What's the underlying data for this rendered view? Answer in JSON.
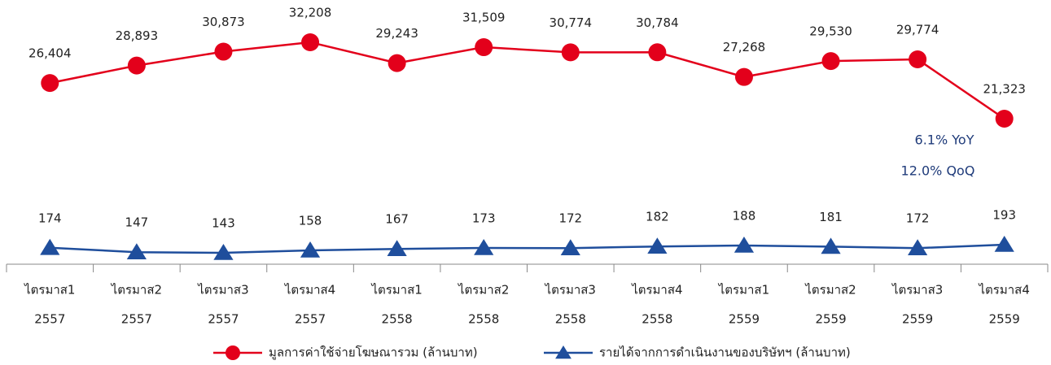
{
  "chart_data": {
    "type": "line",
    "categories": [
      [
        "ไตรมาส1",
        "2557"
      ],
      [
        "ไตรมาส2",
        "2557"
      ],
      [
        "ไตรมาส3",
        "2557"
      ],
      [
        "ไตรมาส4",
        "2557"
      ],
      [
        "ไตรมาส1",
        "2558"
      ],
      [
        "ไตรมาส2",
        "2558"
      ],
      [
        "ไตรมาส3",
        "2558"
      ],
      [
        "ไตรมาส4",
        "2558"
      ],
      [
        "ไตรมาส1",
        "2559"
      ],
      [
        "ไตรมาส2",
        "2559"
      ],
      [
        "ไตรมาส3",
        "2559"
      ],
      [
        "ไตรมาส4",
        "2559"
      ]
    ],
    "series": [
      {
        "name": "มูลการค่าใช้จ่ายโฆษณารวม (ล้านบาท)",
        "color": "#e3001b",
        "marker": "circle",
        "values": [
          26404,
          28893,
          30873,
          32208,
          29243,
          31509,
          30774,
          30784,
          27268,
          29530,
          29774,
          21323
        ],
        "value_labels": [
          "26,404",
          "28,893",
          "30,873",
          "32,208",
          "29,243",
          "31,509",
          "30,774",
          "30,784",
          "27,268",
          "29,530",
          "29,774",
          "21,323"
        ]
      },
      {
        "name": "รายได้จากการดำเนินงานของบริษัทฯ (ล้านบาท)",
        "color": "#1f4e9c",
        "marker": "triangle",
        "axis": "y2",
        "values": [
          174,
          147,
          143,
          158,
          167,
          173,
          172,
          182,
          188,
          181,
          172,
          193
        ]
      }
    ],
    "annotations": [
      "6.1% YoY",
      "12.0% QoQ"
    ]
  }
}
